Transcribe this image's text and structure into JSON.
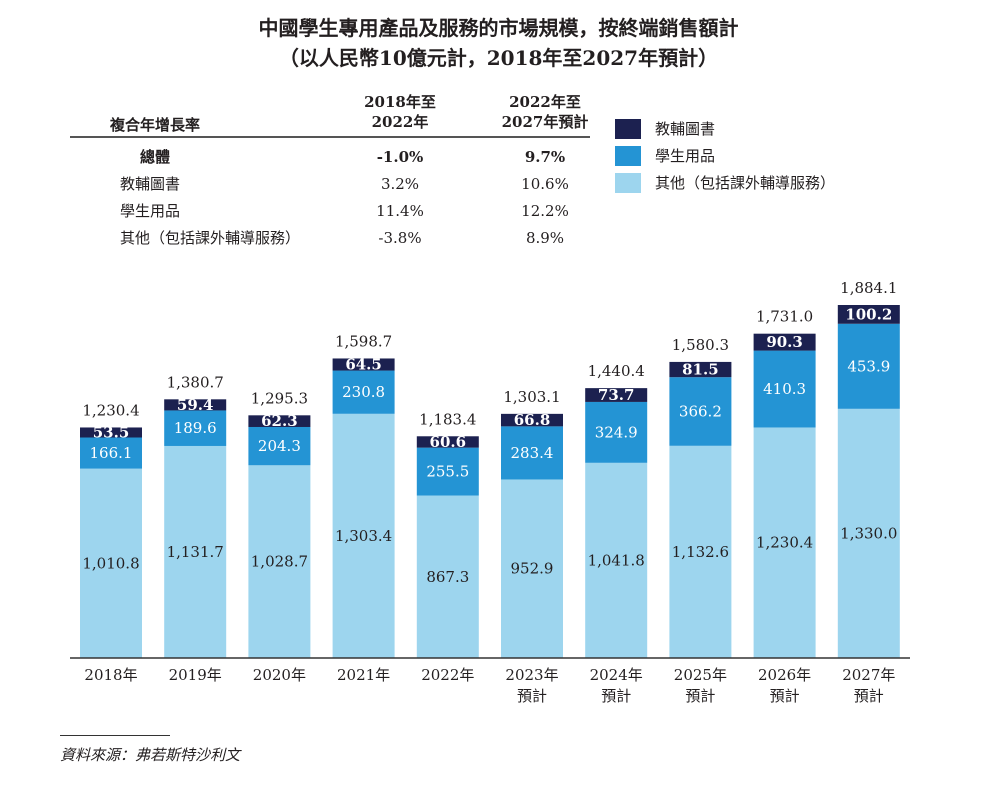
{
  "chart_data": {
    "type": "bar",
    "stacked": true,
    "title": "中國學生專用產品及服務的市場規模，按終端銷售額計",
    "subtitle": "（以人民幣10億元計，2018年至2027年預計）",
    "categories": [
      "2018年",
      "2019年",
      "2020年",
      "2021年",
      "2022年",
      "2023年\n預計",
      "2024年\n預計",
      "2025年\n預計",
      "2026年\n預計",
      "2027年\n預計"
    ],
    "series": [
      {
        "name": "其他（包括課外輔導服務）",
        "color": "#9dd5ee",
        "values": [
          1010.8,
          1131.7,
          1028.7,
          1303.4,
          867.3,
          952.9,
          1041.8,
          1132.6,
          1230.4,
          1330.0
        ],
        "labels": [
          "1,010.8",
          "1,131.7",
          "1,028.7",
          "1,303.4",
          "867.3",
          "952.9",
          "1,041.8",
          "1,132.6",
          "1,230.4",
          "1,330.0"
        ]
      },
      {
        "name": "學生用品",
        "color": "#2494d4",
        "values": [
          166.1,
          189.6,
          204.3,
          230.8,
          255.5,
          283.4,
          324.9,
          366.2,
          410.3,
          453.9
        ],
        "labels": [
          "166.1",
          "189.6",
          "204.3",
          "230.8",
          "255.5",
          "283.4",
          "324.9",
          "366.2",
          "410.3",
          "453.9"
        ]
      },
      {
        "name": "教輔圖書",
        "color": "#1c2150",
        "values": [
          53.5,
          59.4,
          62.3,
          64.5,
          60.6,
          66.8,
          73.7,
          81.5,
          90.3,
          100.2
        ],
        "labels": [
          "53.5",
          "59.4",
          "62.3",
          "64.5",
          "60.6",
          "66.8",
          "73.7",
          "81.5",
          "90.3",
          "100.2"
        ]
      }
    ],
    "totals": [
      "1,230.4",
      "1,380.7",
      "1,295.3",
      "1,598.7",
      "1,183.4",
      "1,303.1",
      "1,440.4",
      "1,580.3",
      "1,731.0",
      "1,884.1"
    ],
    "ylim": [
      0,
      1884.1
    ],
    "grid": false,
    "legend_placement": "top-right"
  },
  "legend": [
    {
      "label": "教輔圖書",
      "color": "#1c2150"
    },
    {
      "label": "學生用品",
      "color": "#2494d4"
    },
    {
      "label": "其他（包括課外輔導服務）",
      "color": "#9dd5ee"
    }
  ],
  "cagr_table": {
    "header": [
      "複合年增長率",
      "2018年至\n2022年",
      "2022年至\n2027年預計"
    ],
    "rows": [
      [
        "總體",
        "-1.0%",
        "9.7%"
      ],
      [
        "教輔圖書",
        "3.2%",
        "10.6%"
      ],
      [
        "學生用品",
        "11.4%",
        "12.2%"
      ],
      [
        "其他（包括課外輔導服務）",
        "-3.8%",
        "8.9%"
      ]
    ]
  },
  "source": "資料來源：弗若斯特沙利文"
}
